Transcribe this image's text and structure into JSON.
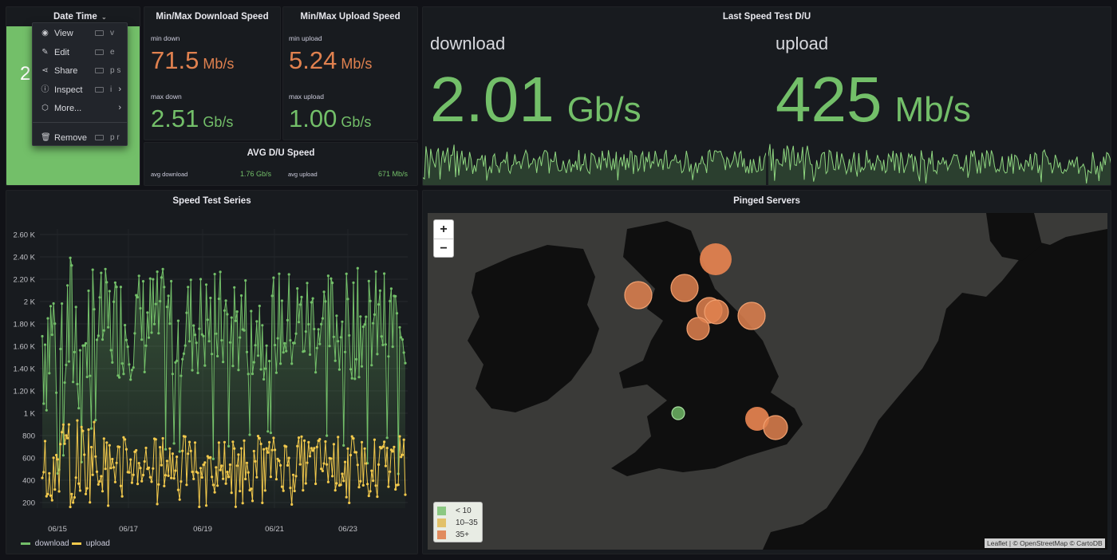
{
  "datetime_panel": {
    "title": "Date Time",
    "partial_value": "2",
    "menu": [
      {
        "label": "View",
        "key": "v",
        "icon": "eye-icon",
        "arrow": ""
      },
      {
        "label": "Edit",
        "key": "e",
        "icon": "edit-icon",
        "arrow": ""
      },
      {
        "label": "Share",
        "key": "p s",
        "icon": "share-icon",
        "arrow": ""
      },
      {
        "label": "Inspect",
        "key": "i",
        "icon": "info-icon",
        "arrow": "›"
      },
      {
        "label": "More...",
        "key": "",
        "icon": "cube-icon",
        "arrow": "›"
      },
      {
        "label": "Remove",
        "key": "p r",
        "icon": "trash-icon",
        "arrow": ""
      }
    ],
    "bg_color": "#73bf69"
  },
  "minmax_download": {
    "title": "Min/Max Download Speed",
    "min_label": "min down",
    "min_value": "71.5",
    "min_unit": "Mb/s",
    "max_label": "max down",
    "max_value": "2.51",
    "max_unit": "Gb/s"
  },
  "minmax_upload": {
    "title": "Min/Max Upload Speed",
    "min_label": "min upload",
    "min_value": "5.24",
    "min_unit": "Mb/s",
    "max_label": "max upload",
    "max_value": "1.00",
    "max_unit": "Gb/s"
  },
  "avg_panel": {
    "title": "AVG D/U Speed",
    "down_label": "avg download",
    "down_value": "1.76 Gb/s",
    "up_label": "avg upload",
    "up_value": "671 Mb/s"
  },
  "last_test": {
    "title": "Last Speed Test D/U",
    "download_label": "download",
    "download_value": "2.01",
    "download_unit": "Gb/s",
    "upload_label": "upload",
    "upload_value": "425",
    "upload_unit": "Mb/s"
  },
  "series_panel": {
    "title": "Speed Test Series"
  },
  "map_panel": {
    "title": "Pinged Servers",
    "zoom_in": "+",
    "zoom_out": "−",
    "legend": [
      {
        "label": "< 10",
        "color": "#73bf69"
      },
      {
        "label": "10–35",
        "color": "#e0b74a"
      },
      {
        "label": "35+",
        "color": "#e0814f"
      }
    ],
    "attribution": "Leaflet | © OpenStreetMap © CartoDB"
  },
  "colors": {
    "download": "#73bf69",
    "upload": "#f2c94c",
    "accent_orange": "#e0814f",
    "panel_bg": "#181b1f"
  },
  "chart_data": {
    "type": "line",
    "title": "Speed Test Series",
    "y_ticks": [
      "2.60 K",
      "2.40 K",
      "2.20 K",
      "2 K",
      "1.80 K",
      "1.60 K",
      "1.40 K",
      "1.20 K",
      "1 K",
      "800",
      "600",
      "400",
      "200"
    ],
    "x_ticks": [
      "06/15",
      "06/17",
      "06/19",
      "06/21",
      "06/23"
    ],
    "ylim": [
      150,
      2650
    ],
    "series": [
      {
        "name": "download",
        "color": "#73bf69",
        "summary": {
          "min": 71.5,
          "max": 2510,
          "avg": 1760,
          "typical_range": [
            1300,
            2300
          ]
        }
      },
      {
        "name": "upload",
        "color": "#f2c94c",
        "summary": {
          "min": 5.24,
          "max": 1000,
          "avg": 671,
          "typical_range": [
            300,
            800
          ]
        }
      }
    ],
    "grid": true,
    "legend": "bottom-left"
  }
}
